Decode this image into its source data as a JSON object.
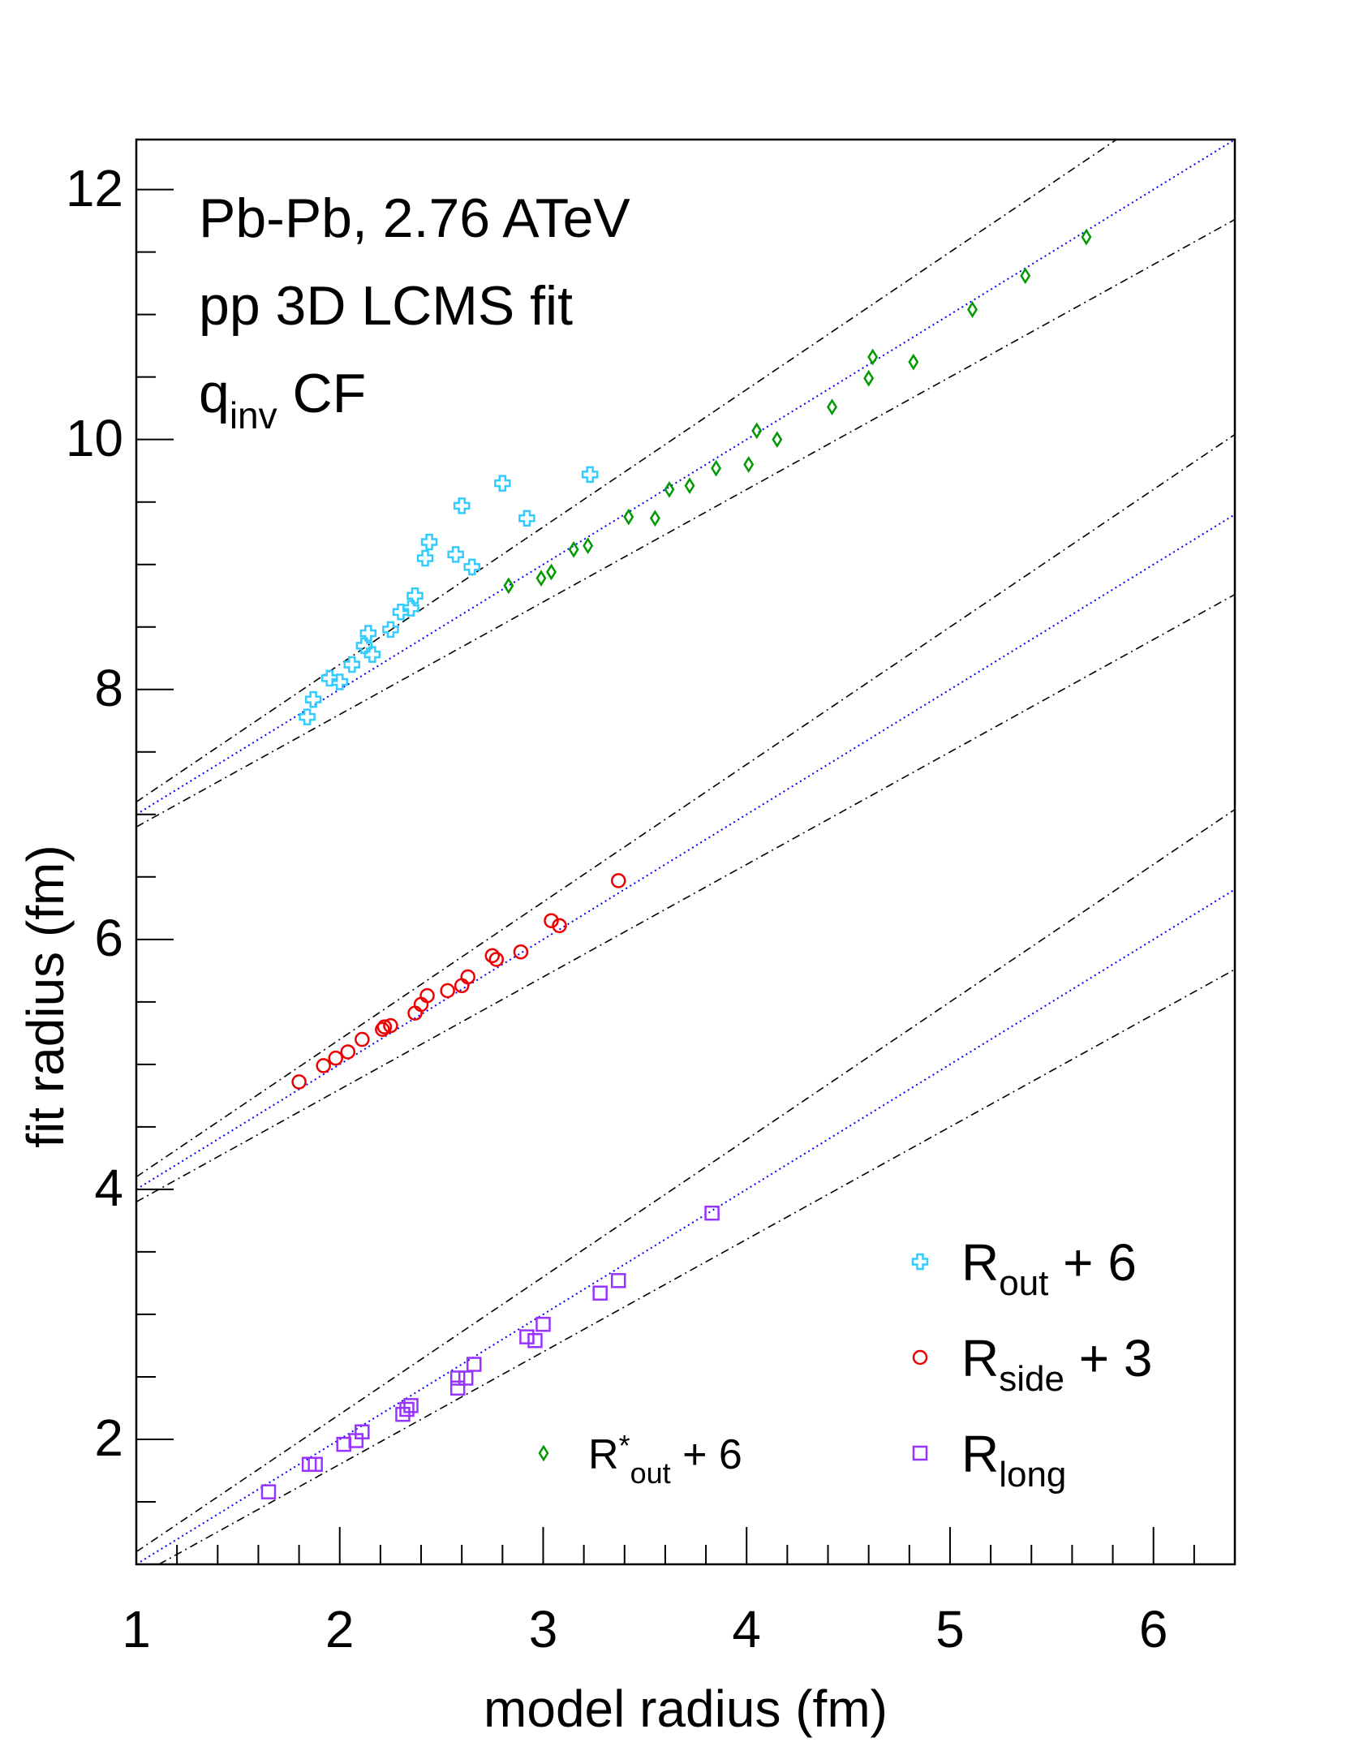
{
  "chart_data": {
    "type": "scatter",
    "title": "",
    "xlabel": "model radius (fm)",
    "ylabel": "fit radius (fm)",
    "xlim": [
      1.0,
      6.4
    ],
    "ylim": [
      1.0,
      12.4
    ],
    "x_ticks": [
      "1",
      "2",
      "3",
      "4",
      "5",
      "6"
    ],
    "y_ticks": [
      "2",
      "4",
      "6",
      "8",
      "10",
      "12"
    ],
    "annotations": {
      "line1": "Pb-Pb, 2.76 ATeV",
      "line2": "pp 3D LCMS fit",
      "line3_main": "q",
      "line3_sub": "inv",
      "line3_rest": " CF"
    },
    "legend": {
      "placement": "bottom-right",
      "entries": [
        {
          "series": "Rout",
          "main": "R",
          "sub": "out",
          "sup": "",
          "rest": " + 6"
        },
        {
          "series": "Rside",
          "main": "R",
          "sub": "side",
          "sup": "",
          "rest": " + 3"
        },
        {
          "series": "Rlong",
          "main": "R",
          "sub": "long",
          "sup": "",
          "rest": ""
        },
        {
          "series": "Rstar",
          "main": "R",
          "sub": "out",
          "sup": "*",
          "rest": " + 6"
        }
      ]
    },
    "reference_lines": [
      {
        "offset": 6,
        "slopes": [
          1.0,
          1.1,
          0.9
        ],
        "colors": [
          "#0000ff",
          "#000000",
          "#000000"
        ]
      },
      {
        "offset": 3,
        "slopes": [
          1.0,
          1.1,
          0.9
        ],
        "colors": [
          "#0000ff",
          "#000000",
          "#000000"
        ]
      },
      {
        "offset": 0,
        "slopes": [
          1.0,
          1.1,
          0.9
        ],
        "colors": [
          "#0000ff",
          "#000000",
          "#000000"
        ]
      }
    ],
    "series": [
      {
        "name": "Rout + 6",
        "marker": "cross",
        "color": "#33ccff",
        "points": [
          [
            1.84,
            7.78
          ],
          [
            1.87,
            7.92
          ],
          [
            1.95,
            8.09
          ],
          [
            2.0,
            8.06
          ],
          [
            2.06,
            8.2
          ],
          [
            2.12,
            8.35
          ],
          [
            2.14,
            8.45
          ],
          [
            2.16,
            8.28
          ],
          [
            2.25,
            8.48
          ],
          [
            2.3,
            8.62
          ],
          [
            2.35,
            8.65
          ],
          [
            2.37,
            8.75
          ],
          [
            2.42,
            9.05
          ],
          [
            2.44,
            9.18
          ],
          [
            2.57,
            9.08
          ],
          [
            2.6,
            9.47
          ],
          [
            2.65,
            8.98
          ],
          [
            2.8,
            9.65
          ],
          [
            2.92,
            9.37
          ],
          [
            3.23,
            9.72
          ]
        ]
      },
      {
        "name": "R*out + 6",
        "marker": "diamond",
        "color": "#009900",
        "points": [
          [
            2.83,
            8.83
          ],
          [
            2.99,
            8.89
          ],
          [
            3.04,
            8.94
          ],
          [
            3.15,
            9.12
          ],
          [
            3.22,
            9.15
          ],
          [
            3.42,
            9.38
          ],
          [
            3.55,
            9.37
          ],
          [
            3.62,
            9.6
          ],
          [
            3.72,
            9.63
          ],
          [
            3.85,
            9.77
          ],
          [
            4.01,
            9.8
          ],
          [
            4.05,
            10.07
          ],
          [
            4.15,
            10.0
          ],
          [
            4.42,
            10.26
          ],
          [
            4.6,
            10.49
          ],
          [
            4.62,
            10.66
          ],
          [
            4.82,
            10.62
          ],
          [
            5.11,
            11.04
          ],
          [
            5.37,
            11.31
          ],
          [
            5.67,
            11.62
          ]
        ]
      },
      {
        "name": "Rside + 3",
        "marker": "circle",
        "color": "#ee0000",
        "points": [
          [
            1.8,
            4.86
          ],
          [
            1.92,
            4.99
          ],
          [
            1.98,
            5.05
          ],
          [
            2.04,
            5.1
          ],
          [
            2.11,
            5.2
          ],
          [
            2.21,
            5.28
          ],
          [
            2.22,
            5.3
          ],
          [
            2.25,
            5.31
          ],
          [
            2.37,
            5.41
          ],
          [
            2.4,
            5.48
          ],
          [
            2.43,
            5.55
          ],
          [
            2.53,
            5.59
          ],
          [
            2.6,
            5.63
          ],
          [
            2.63,
            5.7
          ],
          [
            2.75,
            5.87
          ],
          [
            2.77,
            5.84
          ],
          [
            2.89,
            5.9
          ],
          [
            3.04,
            6.15
          ],
          [
            3.08,
            6.11
          ],
          [
            3.37,
            6.47
          ]
        ]
      },
      {
        "name": "Rlong",
        "marker": "square",
        "color": "#9933ff",
        "points": [
          [
            1.65,
            1.58
          ],
          [
            1.85,
            1.8
          ],
          [
            1.88,
            1.8
          ],
          [
            2.02,
            1.96
          ],
          [
            2.08,
            1.99
          ],
          [
            2.11,
            2.06
          ],
          [
            2.31,
            2.2
          ],
          [
            2.33,
            2.24
          ],
          [
            2.35,
            2.27
          ],
          [
            2.58,
            2.41
          ],
          [
            2.58,
            2.49
          ],
          [
            2.62,
            2.49
          ],
          [
            2.66,
            2.6
          ],
          [
            2.92,
            2.82
          ],
          [
            2.96,
            2.79
          ],
          [
            3.0,
            2.92
          ],
          [
            3.28,
            3.17
          ],
          [
            3.37,
            3.27
          ],
          [
            3.83,
            3.81
          ]
        ]
      }
    ],
    "grid": false
  }
}
